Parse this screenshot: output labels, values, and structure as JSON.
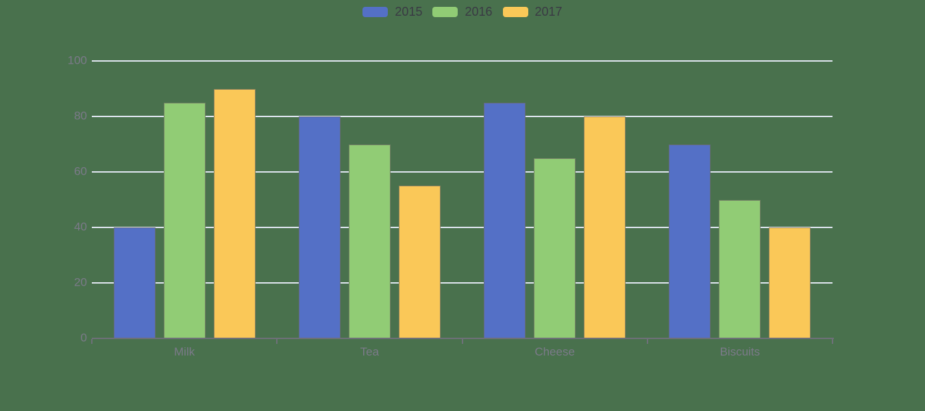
{
  "colors": {
    "background": "#49714D",
    "grid_line": "#E0E6F1",
    "axis_line": "#6E7079",
    "axis_label_text": "#7B7A89",
    "legend_text": "#3A3A44",
    "bar_outline": "rgba(108,106,98,0.75)"
  },
  "chart_data": {
    "type": "bar",
    "title": "",
    "xlabel": "",
    "ylabel": "",
    "categories": [
      "Milk",
      "Tea",
      "Cheese",
      "Biscuits"
    ],
    "series": [
      {
        "name": "2015",
        "color": "#5470C6",
        "values": [
          40,
          80,
          85,
          70
        ]
      },
      {
        "name": "2016",
        "color": "#91CC75",
        "values": [
          85,
          70,
          65,
          50
        ]
      },
      {
        "name": "2017",
        "color": "#FAC858",
        "values": [
          90,
          55,
          80,
          40
        ]
      }
    ],
    "ylim": [
      0,
      100
    ],
    "y_ticks": [
      0,
      20,
      40,
      60,
      80,
      100
    ],
    "grid": true,
    "legend_position": "top-center"
  }
}
